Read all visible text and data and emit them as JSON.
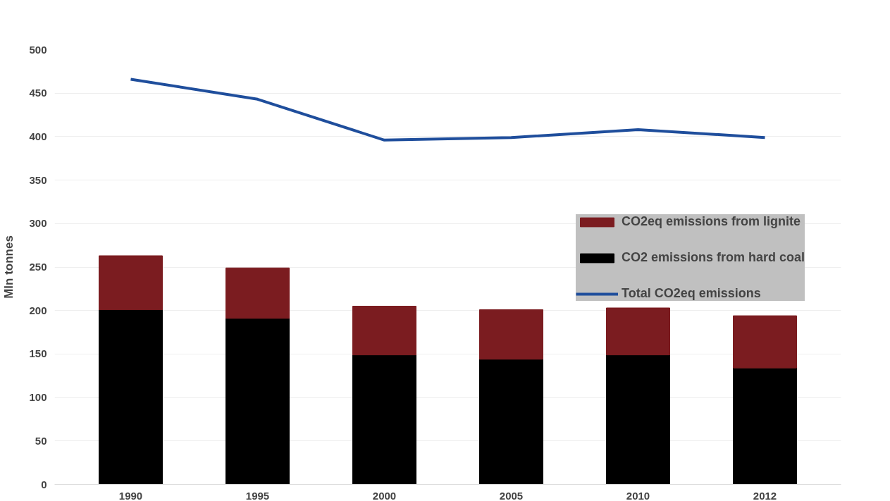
{
  "chart_data": {
    "type": "bar",
    "stacked": true,
    "categories": [
      "1990",
      "1995",
      "2000",
      "2005",
      "2010",
      "2012"
    ],
    "ylabel": "Mln tonnes",
    "ylim": [
      0,
      500
    ],
    "yticks": [
      0,
      50,
      100,
      150,
      200,
      250,
      300,
      350,
      400,
      450,
      500
    ],
    "grid": "y",
    "legend": "right",
    "series": [
      {
        "name": "CO2 emissions from hard coal",
        "color": "#000000",
        "values": [
          201,
          191,
          149,
          144,
          149,
          134
        ]
      },
      {
        "name": "CO2eq emissions from lignite",
        "color": "#7b1c20",
        "values": [
          62,
          58,
          56,
          57,
          54,
          60
        ]
      },
      {
        "name": "Total CO2eq emissions",
        "type": "line",
        "color": "#1f4e9c",
        "values": [
          466,
          443,
          396,
          399,
          408,
          399
        ]
      }
    ]
  }
}
